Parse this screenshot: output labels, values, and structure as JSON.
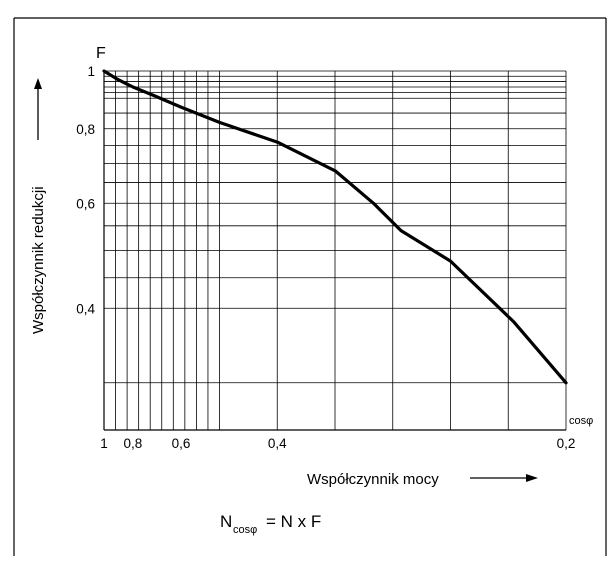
{
  "chart_data": {
    "type": "line",
    "x_scale": "reciprocal",
    "y_scale": "log",
    "xlim": [
      1,
      0.2
    ],
    "ylim": [
      0.25,
      1
    ],
    "grid": true,
    "y_symbol": "F",
    "x_symbol": "cosφ",
    "ylabel": "Współczynnik redukcji",
    "xlabel": "Współczynnik mocy",
    "x_ticks": [
      {
        "value": 1,
        "label": "1"
      },
      {
        "value": 0.8,
        "label": "0,8"
      },
      {
        "value": 0.6,
        "label": "0,6"
      },
      {
        "value": 0.4,
        "label": "0,4"
      },
      {
        "value": 0.2,
        "label": "0,2"
      }
    ],
    "y_ticks": [
      {
        "value": 1,
        "label": "1"
      },
      {
        "value": 0.8,
        "label": "0,8"
      },
      {
        "value": 0.6,
        "label": "0,6"
      },
      {
        "value": 0.4,
        "label": "0,4"
      }
    ],
    "series": [
      {
        "x": [
          1.0,
          0.9,
          0.8,
          0.7,
          0.6,
          0.5,
          0.4,
          0.333,
          0.3,
          0.28,
          0.25,
          0.22,
          0.2
        ],
        "y": [
          1.0,
          0.97,
          0.94,
          0.91,
          0.87,
          0.82,
          0.76,
          0.68,
          0.6,
          0.54,
          0.48,
          0.38,
          0.3
        ]
      }
    ]
  },
  "formula": {
    "lhs": "N",
    "lhs_subscript": "cosφ",
    "rhs": "= N x F"
  },
  "colors": {
    "line": "#000000",
    "grid": "#000000",
    "background": "#ffffff"
  }
}
